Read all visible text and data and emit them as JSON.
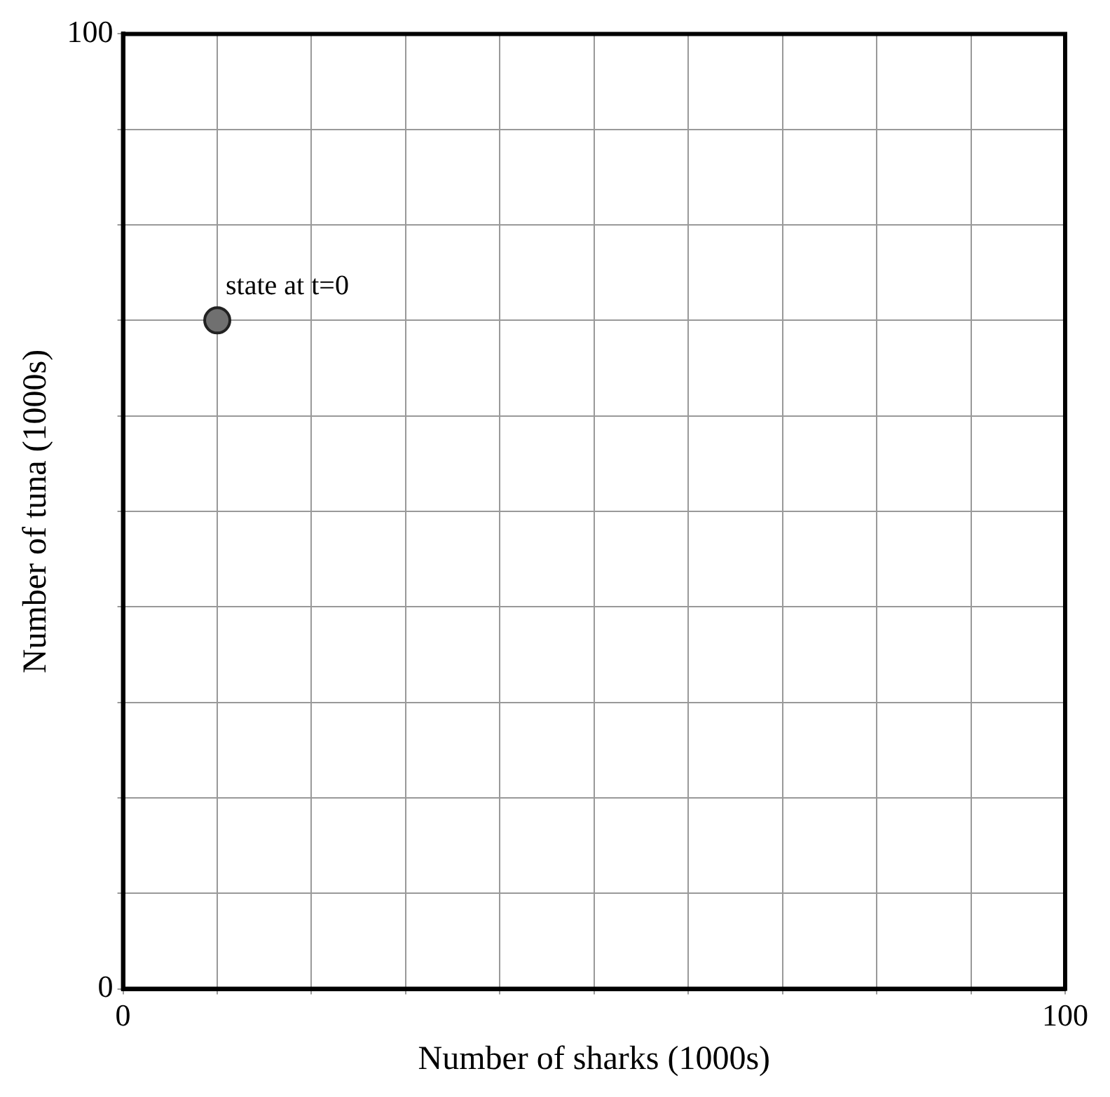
{
  "chart_data": {
    "type": "scatter",
    "xlabel": "Number of sharks (1000s)",
    "ylabel": "Number of tuna (1000s)",
    "x": [
      10
    ],
    "values": [
      70
    ],
    "color": "#707070",
    "marker": "circle",
    "xlim": [
      0,
      100
    ],
    "ylim": [
      0,
      100
    ],
    "xticks": [
      0,
      {
        "value": 10,
        "label": null
      },
      {
        "value": 20,
        "label": null
      },
      {
        "value": 30,
        "label": null
      },
      {
        "value": 40,
        "label": null
      },
      {
        "value": 50,
        "label": null
      },
      {
        "value": 60,
        "label": null
      },
      {
        "value": 70,
        "label": null
      },
      {
        "value": 80,
        "label": null
      },
      {
        "value": 90,
        "label": null
      },
      100
    ],
    "yticks": [
      0,
      {
        "value": 10,
        "label": null
      },
      {
        "value": 20,
        "label": null
      },
      {
        "value": 30,
        "label": null
      },
      {
        "value": 40,
        "label": null
      },
      {
        "value": 50,
        "label": null
      },
      {
        "value": 60,
        "label": null
      },
      {
        "value": 70,
        "label": null
      },
      {
        "value": 80,
        "label": null
      },
      {
        "value": 90,
        "label": null
      },
      100
    ],
    "annotations": [
      {
        "text": "state at t=0",
        "x": 10,
        "y": 70
      }
    ],
    "grid": true,
    "legend": false
  }
}
